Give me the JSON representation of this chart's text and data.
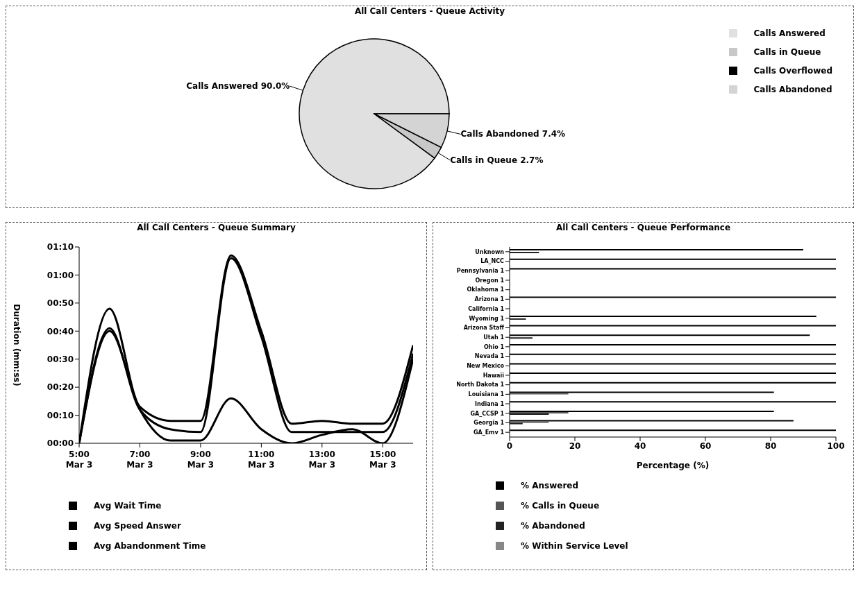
{
  "chart_data": [
    {
      "type": "pie",
      "title": "All Call Centers - Queue Activity",
      "categories": [
        "Calls Answered",
        "Calls in Queue",
        "Calls Overflowed",
        "Calls Abandoned"
      ],
      "values": [
        90.0,
        2.7,
        0,
        7.4
      ],
      "colors": [
        "#e0e0e0",
        "#c8c8c8",
        "#000000",
        "#d4d4d4"
      ],
      "value_labels": [
        "90.0%",
        "2.7%",
        null,
        "7.4%"
      ],
      "legend": "top right"
    },
    {
      "type": "line",
      "title": "All Call Centers - Queue Summary",
      "ylabel": "Duration (mm:ss)",
      "x": [
        "--03-03T05:00",
        "--03-03T06:00",
        "--03-03T07:00",
        "--03-03T08:00",
        "--03-03T09:00",
        "--03-03T10:00",
        "--03-03T11:00",
        "--03-03T12:00",
        "--03-03T13:00",
        "--03-03T14:00",
        "--03-03T15:00",
        "--03-03T16:00"
      ],
      "xlim": [
        "--03-03T05:00",
        "--03-03T16:00"
      ],
      "xticks": [
        {
          "value": "--03-03T05:00",
          "label": "5:00\nMar 3"
        },
        {
          "value": "--03-03T07:00",
          "label": "7:00\nMar 3"
        },
        {
          "value": "--03-03T09:00",
          "label": "9:00\nMar 3"
        },
        {
          "value": "--03-03T11:00",
          "label": "11:00\nMar 3"
        },
        {
          "value": "--03-03T13:00",
          "label": "13:00\nMar 3"
        },
        {
          "value": "--03-03T15:00",
          "label": "15:00\nMar 3"
        }
      ],
      "ylim": [
        0,
        70
      ],
      "yticks": [
        {
          "value": 0,
          "label": "00:00"
        },
        {
          "value": 10,
          "label": "00:10"
        },
        {
          "value": 20,
          "label": "00:20"
        },
        {
          "value": 30,
          "label": "00:30"
        },
        {
          "value": 40,
          "label": "00:40"
        },
        {
          "value": 50,
          "label": "00:50"
        },
        {
          "value": 60,
          "label": "01:00"
        },
        {
          "value": 70,
          "label": "01:10"
        }
      ],
      "series": [
        {
          "name": "Avg Wait Time",
          "color": "#000000",
          "values": [
            0,
            48,
            13,
            8,
            8,
            67,
            40,
            7,
            8,
            7,
            7,
            35
          ]
        },
        {
          "name": "Avg Speed Answer",
          "color": "#000000",
          "values": [
            0,
            41,
            12,
            5,
            4,
            66,
            38,
            4,
            4,
            4,
            4,
            32
          ]
        },
        {
          "name": "Avg Abandonment Time",
          "color": "#000000",
          "values": [
            0,
            40,
            12,
            1,
            1,
            16,
            5,
            0,
            3,
            5,
            0,
            30
          ]
        }
      ],
      "marker": "none",
      "line_style": "solid",
      "legend": "bottom"
    },
    {
      "type": "bar",
      "orientation": "horizontal",
      "title": "All Call Centers - Queue Performance",
      "xlabel": "Percentage (%)",
      "categories": [
        "Unknown",
        "LA_NCC",
        "Pennsylvania 1",
        "Oregon 1",
        "Oklahoma 1",
        "Arizona 1",
        "California 1",
        "Wyoming 1",
        "Arizona Staff",
        "Utah 1",
        "Ohio 1",
        "Nevada 1",
        "New Mexico",
        "Hawaii",
        "North Dakota 1",
        "Louisiana 1",
        "Indiana 1",
        "GA_CCSP 1",
        "Georgia 1",
        "GA_Emv 1"
      ],
      "xlim": [
        0,
        100
      ],
      "xticks": [
        0,
        20,
        40,
        60,
        80,
        100
      ],
      "series": [
        {
          "name": "% Answered",
          "color": "#000000",
          "values": [
            90,
            100,
            100,
            null,
            null,
            100,
            null,
            94,
            100,
            92,
            100,
            100,
            100,
            100,
            100,
            81,
            100,
            81,
            87,
            100
          ]
        },
        {
          "name": "% Calls in Queue",
          "color": "#555555",
          "values": [
            null,
            null,
            null,
            null,
            null,
            null,
            null,
            null,
            null,
            null,
            null,
            null,
            null,
            null,
            null,
            18,
            null,
            18,
            12,
            null
          ]
        },
        {
          "name": "% Abandoned",
          "color": "#222222",
          "values": [
            9,
            null,
            null,
            null,
            null,
            null,
            null,
            5,
            null,
            7,
            null,
            null,
            null,
            null,
            null,
            null,
            null,
            12,
            4,
            null
          ]
        },
        {
          "name": "% Within Service Level",
          "color": "#888888",
          "values": [
            null,
            null,
            null,
            null,
            null,
            null,
            null,
            null,
            null,
            null,
            null,
            null,
            null,
            null,
            null,
            null,
            null,
            null,
            null,
            null
          ]
        }
      ],
      "legend": "bottom"
    }
  ]
}
